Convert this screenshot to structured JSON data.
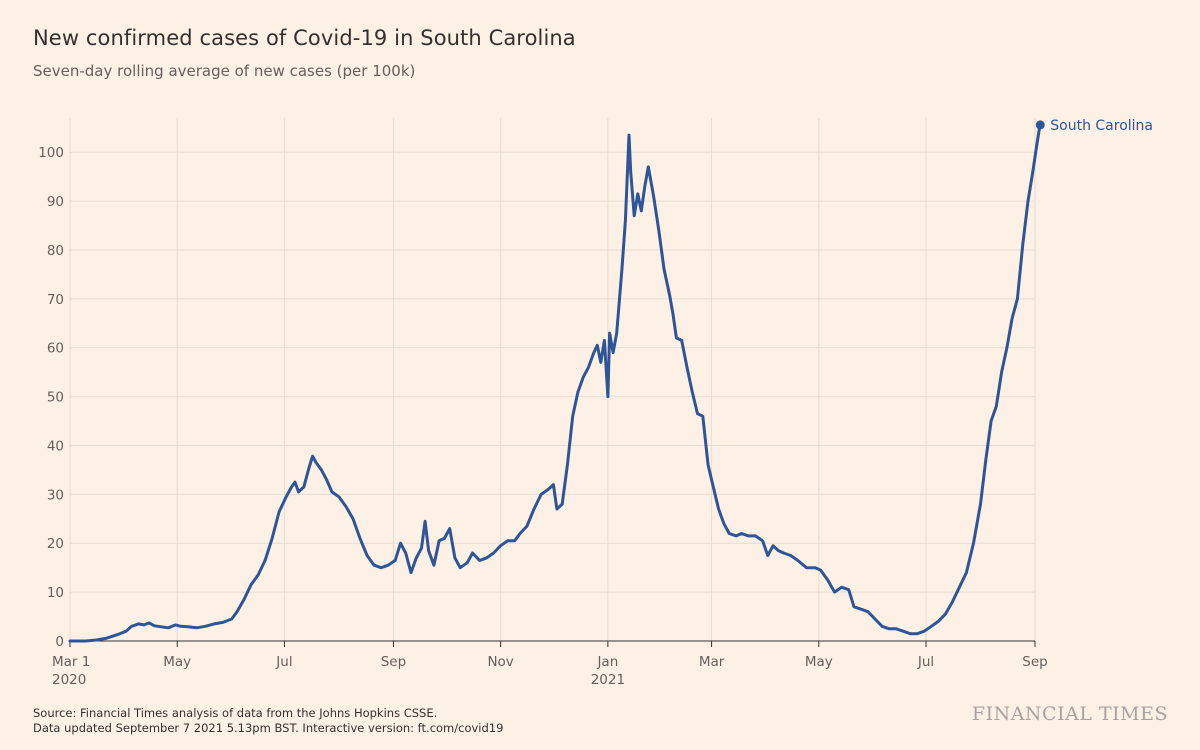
{
  "chart_data": {
    "type": "line",
    "title": "New confirmed cases of Covid-19 in South Carolina",
    "subtitle": "Seven-day rolling average of new cases (per 100k)",
    "ylim": [
      0,
      107
    ],
    "yticks": [
      0,
      10,
      20,
      30,
      40,
      50,
      60,
      70,
      80,
      90,
      100
    ],
    "grid": true,
    "xticks": [
      {
        "date": "2020-03-01",
        "label": "Mar 1",
        "sublabel": "2020"
      },
      {
        "date": "2020-05-01",
        "label": "May",
        "sublabel": ""
      },
      {
        "date": "2020-07-01",
        "label": "Jul",
        "sublabel": ""
      },
      {
        "date": "2020-09-01",
        "label": "Sep",
        "sublabel": ""
      },
      {
        "date": "2020-11-01",
        "label": "Nov",
        "sublabel": ""
      },
      {
        "date": "2021-01-01",
        "label": "Jan",
        "sublabel": "2021"
      },
      {
        "date": "2021-03-01",
        "label": "Mar",
        "sublabel": ""
      },
      {
        "date": "2021-05-01",
        "label": "May",
        "sublabel": ""
      },
      {
        "date": "2021-07-01",
        "label": "Jul",
        "sublabel": ""
      },
      {
        "date": "2021-09-01",
        "label": "Sep",
        "sublabel": ""
      }
    ],
    "series": [
      {
        "name": "South Carolina",
        "color": "#2d5597",
        "points": [
          [
            "2020-03-01",
            0
          ],
          [
            "2020-03-10",
            0
          ],
          [
            "2020-03-16",
            0.2
          ],
          [
            "2020-03-22",
            0.6
          ],
          [
            "2020-03-28",
            1.3
          ],
          [
            "2020-04-02",
            2.0
          ],
          [
            "2020-04-05",
            3.0
          ],
          [
            "2020-04-09",
            3.5
          ],
          [
            "2020-04-12",
            3.3
          ],
          [
            "2020-04-15",
            3.7
          ],
          [
            "2020-04-18",
            3.1
          ],
          [
            "2020-04-22",
            2.9
          ],
          [
            "2020-04-26",
            2.7
          ],
          [
            "2020-04-30",
            3.3
          ],
          [
            "2020-05-03",
            3.0
          ],
          [
            "2020-05-07",
            2.9
          ],
          [
            "2020-05-12",
            2.7
          ],
          [
            "2020-05-17",
            3.0
          ],
          [
            "2020-05-22",
            3.5
          ],
          [
            "2020-05-27",
            3.8
          ],
          [
            "2020-06-01",
            4.5
          ],
          [
            "2020-06-04",
            6.0
          ],
          [
            "2020-06-08",
            8.5
          ],
          [
            "2020-06-12",
            11.5
          ],
          [
            "2020-06-16",
            13.5
          ],
          [
            "2020-06-20",
            16.5
          ],
          [
            "2020-06-24",
            21.0
          ],
          [
            "2020-06-28",
            26.5
          ],
          [
            "2020-07-02",
            29.5
          ],
          [
            "2020-07-05",
            31.5
          ],
          [
            "2020-07-07",
            32.5
          ],
          [
            "2020-07-09",
            30.5
          ],
          [
            "2020-07-12",
            31.5
          ],
          [
            "2020-07-15",
            35.5
          ],
          [
            "2020-07-17",
            37.8
          ],
          [
            "2020-07-19",
            36.5
          ],
          [
            "2020-07-22",
            35.0
          ],
          [
            "2020-07-25",
            33.0
          ],
          [
            "2020-07-28",
            30.5
          ],
          [
            "2020-08-01",
            29.5
          ],
          [
            "2020-08-05",
            27.5
          ],
          [
            "2020-08-09",
            25.0
          ],
          [
            "2020-08-13",
            21.0
          ],
          [
            "2020-08-17",
            17.5
          ],
          [
            "2020-08-21",
            15.5
          ],
          [
            "2020-08-25",
            15.0
          ],
          [
            "2020-08-29",
            15.5
          ],
          [
            "2020-09-02",
            16.5
          ],
          [
            "2020-09-05",
            20.0
          ],
          [
            "2020-09-08",
            18.0
          ],
          [
            "2020-09-11",
            14.0
          ],
          [
            "2020-09-14",
            17.0
          ],
          [
            "2020-09-17",
            19.0
          ],
          [
            "2020-09-19",
            24.5
          ],
          [
            "2020-09-21",
            18.5
          ],
          [
            "2020-09-24",
            15.5
          ],
          [
            "2020-09-27",
            20.5
          ],
          [
            "2020-09-30",
            21.0
          ],
          [
            "2020-10-03",
            23.0
          ],
          [
            "2020-10-06",
            17.0
          ],
          [
            "2020-10-09",
            15.0
          ],
          [
            "2020-10-13",
            16.0
          ],
          [
            "2020-10-16",
            18.0
          ],
          [
            "2020-10-20",
            16.5
          ],
          [
            "2020-10-24",
            17.0
          ],
          [
            "2020-10-28",
            18.0
          ],
          [
            "2020-11-01",
            19.5
          ],
          [
            "2020-11-05",
            20.5
          ],
          [
            "2020-11-09",
            20.5
          ],
          [
            "2020-11-12",
            22.0
          ],
          [
            "2020-11-16",
            23.5
          ],
          [
            "2020-11-20",
            27.0
          ],
          [
            "2020-11-24",
            30.0
          ],
          [
            "2020-11-28",
            31.0
          ],
          [
            "2020-12-01",
            32.0
          ],
          [
            "2020-12-03",
            27.0
          ],
          [
            "2020-12-06",
            28.0
          ],
          [
            "2020-12-09",
            36.0
          ],
          [
            "2020-12-12",
            46.0
          ],
          [
            "2020-12-15",
            51.0
          ],
          [
            "2020-12-18",
            54.0
          ],
          [
            "2020-12-21",
            56.0
          ],
          [
            "2020-12-24",
            59.0
          ],
          [
            "2020-12-26",
            60.5
          ],
          [
            "2020-12-28",
            57.0
          ],
          [
            "2020-12-30",
            61.5
          ],
          [
            "2021-01-01",
            50.0
          ],
          [
            "2021-01-02",
            63.0
          ],
          [
            "2021-01-04",
            59.0
          ],
          [
            "2021-01-06",
            63.0
          ],
          [
            "2021-01-09",
            76.0
          ],
          [
            "2021-01-11",
            86.0
          ],
          [
            "2021-01-13",
            103.5
          ],
          [
            "2021-01-14",
            96.0
          ],
          [
            "2021-01-16",
            87.0
          ],
          [
            "2021-01-18",
            91.5
          ],
          [
            "2021-01-20",
            88.0
          ],
          [
            "2021-01-22",
            93.0
          ],
          [
            "2021-01-24",
            97.0
          ],
          [
            "2021-01-27",
            91.0
          ],
          [
            "2021-01-30",
            84.0
          ],
          [
            "2021-02-02",
            76.0
          ],
          [
            "2021-02-05",
            71.0
          ],
          [
            "2021-02-07",
            67.0
          ],
          [
            "2021-02-09",
            62.0
          ],
          [
            "2021-02-12",
            61.5
          ],
          [
            "2021-02-15",
            56.0
          ],
          [
            "2021-02-18",
            51.0
          ],
          [
            "2021-02-21",
            46.5
          ],
          [
            "2021-02-24",
            46.0
          ],
          [
            "2021-02-27",
            36.0
          ],
          [
            "2021-03-02",
            31.5
          ],
          [
            "2021-03-05",
            27.0
          ],
          [
            "2021-03-08",
            24.0
          ],
          [
            "2021-03-11",
            22.0
          ],
          [
            "2021-03-15",
            21.5
          ],
          [
            "2021-03-18",
            22.0
          ],
          [
            "2021-03-22",
            21.5
          ],
          [
            "2021-03-26",
            21.5
          ],
          [
            "2021-03-30",
            20.5
          ],
          [
            "2021-04-02",
            17.5
          ],
          [
            "2021-04-05",
            19.5
          ],
          [
            "2021-04-08",
            18.5
          ],
          [
            "2021-04-11",
            18.0
          ],
          [
            "2021-04-15",
            17.5
          ],
          [
            "2021-04-19",
            16.5
          ],
          [
            "2021-04-24",
            15.0
          ],
          [
            "2021-04-29",
            15.0
          ],
          [
            "2021-05-02",
            14.5
          ],
          [
            "2021-05-06",
            12.5
          ],
          [
            "2021-05-10",
            10.0
          ],
          [
            "2021-05-14",
            11.0
          ],
          [
            "2021-05-18",
            10.5
          ],
          [
            "2021-05-21",
            7.0
          ],
          [
            "2021-05-25",
            6.5
          ],
          [
            "2021-05-29",
            6.0
          ],
          [
            "2021-06-02",
            4.5
          ],
          [
            "2021-06-06",
            3.0
          ],
          [
            "2021-06-10",
            2.5
          ],
          [
            "2021-06-14",
            2.5
          ],
          [
            "2021-06-18",
            2.0
          ],
          [
            "2021-06-22",
            1.5
          ],
          [
            "2021-06-26",
            1.5
          ],
          [
            "2021-06-30",
            2.0
          ],
          [
            "2021-07-04",
            3.0
          ],
          [
            "2021-07-08",
            4.0
          ],
          [
            "2021-07-12",
            5.5
          ],
          [
            "2021-07-16",
            8.0
          ],
          [
            "2021-07-20",
            11.0
          ],
          [
            "2021-07-24",
            14.0
          ],
          [
            "2021-07-28",
            20.0
          ],
          [
            "2021-08-01",
            28.0
          ],
          [
            "2021-08-04",
            37.0
          ],
          [
            "2021-08-07",
            45.0
          ],
          [
            "2021-08-10",
            48.0
          ],
          [
            "2021-08-13",
            55.0
          ],
          [
            "2021-08-16",
            60.0
          ],
          [
            "2021-08-19",
            66.0
          ],
          [
            "2021-08-22",
            70.0
          ],
          [
            "2021-08-25",
            81.0
          ],
          [
            "2021-08-28",
            90.0
          ],
          [
            "2021-08-31",
            96.5
          ],
          [
            "2021-09-02",
            101.5
          ],
          [
            "2021-09-04",
            106.0
          ]
        ]
      }
    ],
    "end_label": "South Carolina"
  },
  "footer": {
    "source": "Source: Financial Times analysis of data from the Johns Hopkins CSSE.",
    "updated": "Data updated September 7 2021 5.13pm BST. Interactive version: ft.com/covid19"
  },
  "brand": "FINANCIAL TIMES",
  "colors": {
    "background": "#fdf1e6",
    "line": "#2d5597",
    "grid": "#e6dcd2",
    "axis": "#33302e"
  }
}
